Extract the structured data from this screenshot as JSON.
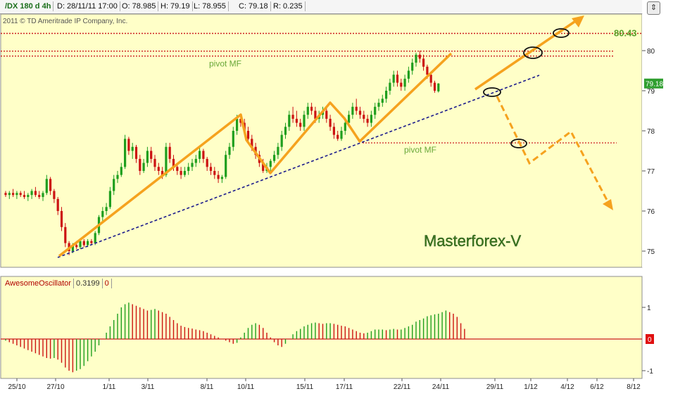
{
  "header": {
    "symbol": "/DX 180 d 4h",
    "date": "D: 28/11/11 17:00",
    "open": "O: 78.985",
    "high": "H: 79.19",
    "low": "L: 78.955",
    "close": "C: 79.18",
    "range": "R: 0.235"
  },
  "copyright": "2011 © TD Ameritrade IP Company, Inc.",
  "watermark": "Masterforex-V",
  "oscillator": {
    "name": "AwesomeOscillator",
    "value": "0.3199",
    "zero": "0"
  },
  "colors": {
    "background": "#ffffc8",
    "up": "#1e9e1e",
    "down": "#cc1212",
    "pattern": "#f5a21e",
    "trendline": "#1a1a8c",
    "level": "#cc1f1f"
  },
  "chart_data": {
    "type": "candlestick",
    "title": "/DX 180 d 4h",
    "ylim": [
      74.7,
      81.0
    ],
    "y_ticks": [
      75,
      76,
      77,
      78,
      79,
      80
    ],
    "x_ticks": [
      "25/10",
      "27/10",
      "1/11",
      "3/11",
      "8/11",
      "10/11",
      "15/11",
      "17/11",
      "22/11",
      "24/11",
      "29/11",
      "1/12",
      "4/12",
      "6/12",
      "8/12"
    ],
    "last_price": "79.18",
    "levels": [
      {
        "label": "80.43",
        "value": 80.43
      },
      {
        "label": "pivot MF",
        "value": 79.9
      },
      {
        "label": "pivot MF",
        "value": 77.7
      }
    ],
    "candles": [
      [
        76.45,
        76.5,
        76.35,
        76.4
      ],
      [
        76.4,
        76.5,
        76.3,
        76.45
      ],
      [
        76.45,
        76.55,
        76.35,
        76.4
      ],
      [
        76.4,
        76.5,
        76.3,
        76.45
      ],
      [
        76.45,
        76.5,
        76.35,
        76.4
      ],
      [
        76.4,
        76.5,
        76.3,
        76.35
      ],
      [
        76.35,
        76.45,
        76.25,
        76.4
      ],
      [
        76.4,
        76.55,
        76.3,
        76.5
      ],
      [
        76.5,
        76.6,
        76.35,
        76.4
      ],
      [
        76.4,
        76.5,
        76.3,
        76.35
      ],
      [
        76.35,
        76.5,
        76.25,
        76.45
      ],
      [
        76.45,
        76.9,
        76.4,
        76.8
      ],
      [
        76.8,
        76.85,
        76.4,
        76.5
      ],
      [
        76.5,
        76.55,
        76.2,
        76.3
      ],
      [
        76.3,
        76.35,
        75.9,
        76.0
      ],
      [
        76.0,
        76.1,
        75.5,
        75.6
      ],
      [
        75.6,
        75.7,
        75.1,
        75.2
      ],
      [
        75.2,
        75.25,
        74.9,
        75.0
      ],
      [
        75.0,
        75.2,
        74.95,
        75.15
      ],
      [
        75.15,
        75.25,
        75.05,
        75.1
      ],
      [
        75.1,
        75.3,
        75.05,
        75.25
      ],
      [
        75.25,
        75.3,
        75.1,
        75.15
      ],
      [
        75.15,
        75.3,
        75.1,
        75.25
      ],
      [
        75.25,
        75.3,
        75.15,
        75.2
      ],
      [
        75.2,
        75.5,
        75.15,
        75.45
      ],
      [
        75.45,
        75.9,
        75.4,
        75.85
      ],
      [
        75.85,
        76.1,
        75.75,
        76.0
      ],
      [
        76.0,
        76.2,
        75.9,
        76.1
      ],
      [
        76.1,
        76.6,
        76.05,
        76.5
      ],
      [
        76.5,
        76.9,
        76.4,
        76.8
      ],
      [
        76.8,
        77.0,
        76.7,
        76.9
      ],
      [
        76.9,
        77.2,
        76.85,
        77.1
      ],
      [
        77.1,
        77.9,
        77.05,
        77.8
      ],
      [
        77.8,
        77.85,
        77.4,
        77.5
      ],
      [
        77.5,
        77.7,
        77.3,
        77.6
      ],
      [
        77.6,
        77.65,
        77.2,
        77.3
      ],
      [
        77.3,
        77.4,
        76.9,
        77.0
      ],
      [
        77.0,
        77.3,
        76.95,
        77.2
      ],
      [
        77.2,
        77.6,
        77.1,
        77.5
      ],
      [
        77.5,
        77.6,
        77.2,
        77.3
      ],
      [
        77.3,
        77.4,
        77.0,
        77.1
      ],
      [
        77.1,
        77.2,
        76.9,
        77.0
      ],
      [
        77.0,
        77.1,
        76.8,
        76.9
      ],
      [
        76.9,
        77.7,
        76.85,
        77.6
      ],
      [
        77.6,
        77.7,
        77.2,
        77.3
      ],
      [
        77.3,
        77.4,
        77.0,
        77.1
      ],
      [
        77.1,
        77.2,
        76.9,
        77.0
      ],
      [
        77.0,
        77.1,
        76.8,
        76.9
      ],
      [
        76.9,
        77.1,
        76.85,
        77.0
      ],
      [
        77.0,
        77.2,
        76.9,
        77.1
      ],
      [
        77.1,
        77.3,
        77.0,
        77.2
      ],
      [
        77.2,
        77.4,
        77.1,
        77.3
      ],
      [
        77.3,
        77.6,
        77.2,
        77.5
      ],
      [
        77.5,
        77.55,
        77.2,
        77.3
      ],
      [
        77.3,
        77.35,
        77.0,
        77.1
      ],
      [
        77.1,
        77.2,
        76.9,
        77.0
      ],
      [
        77.0,
        77.1,
        76.8,
        76.9
      ],
      [
        76.9,
        77.0,
        76.7,
        76.8
      ],
      [
        76.8,
        76.9,
        76.7,
        76.85
      ],
      [
        76.85,
        77.5,
        76.8,
        77.4
      ],
      [
        77.4,
        77.7,
        77.3,
        77.6
      ],
      [
        77.6,
        78.1,
        77.5,
        78.0
      ],
      [
        78.0,
        78.4,
        77.9,
        78.3
      ],
      [
        78.3,
        78.4,
        78.1,
        78.2
      ],
      [
        78.2,
        78.3,
        77.9,
        78.0
      ],
      [
        78.0,
        78.1,
        77.7,
        77.8
      ],
      [
        77.8,
        77.9,
        77.5,
        77.6
      ],
      [
        77.6,
        77.7,
        77.3,
        77.4
      ],
      [
        77.4,
        77.5,
        77.1,
        77.2
      ],
      [
        77.2,
        77.3,
        76.95,
        77.0
      ],
      [
        77.0,
        77.2,
        76.95,
        77.1
      ],
      [
        77.1,
        77.3,
        77.0,
        77.25
      ],
      [
        77.25,
        77.5,
        77.2,
        77.4
      ],
      [
        77.4,
        77.7,
        77.3,
        77.6
      ],
      [
        77.6,
        78.0,
        77.5,
        77.9
      ],
      [
        77.9,
        78.2,
        77.8,
        78.1
      ],
      [
        78.1,
        78.5,
        78.0,
        78.4
      ],
      [
        78.4,
        78.6,
        78.2,
        78.3
      ],
      [
        78.3,
        78.5,
        78.1,
        78.2
      ],
      [
        78.2,
        78.3,
        78.0,
        78.1
      ],
      [
        78.1,
        78.5,
        78.0,
        78.4
      ],
      [
        78.4,
        78.7,
        78.3,
        78.6
      ],
      [
        78.6,
        78.7,
        78.4,
        78.5
      ],
      [
        78.5,
        78.6,
        78.2,
        78.3
      ],
      [
        78.3,
        78.5,
        78.2,
        78.4
      ],
      [
        78.4,
        78.6,
        78.3,
        78.5
      ],
      [
        78.5,
        78.6,
        78.2,
        78.3
      ],
      [
        78.3,
        78.4,
        78.0,
        78.1
      ],
      [
        78.1,
        78.2,
        77.8,
        77.9
      ],
      [
        77.9,
        78.0,
        77.75,
        77.8
      ],
      [
        77.8,
        78.1,
        77.75,
        78.0
      ],
      [
        78.0,
        78.3,
        77.9,
        78.2
      ],
      [
        78.2,
        78.5,
        78.1,
        78.4
      ],
      [
        78.4,
        78.7,
        78.3,
        78.6
      ],
      [
        78.6,
        78.8,
        78.4,
        78.5
      ],
      [
        78.5,
        78.6,
        78.3,
        78.4
      ],
      [
        78.4,
        78.5,
        78.2,
        78.3
      ],
      [
        78.3,
        78.4,
        78.1,
        78.2
      ],
      [
        78.2,
        78.5,
        78.1,
        78.4
      ],
      [
        78.4,
        78.7,
        78.3,
        78.6
      ],
      [
        78.6,
        78.8,
        78.5,
        78.7
      ],
      [
        78.7,
        78.9,
        78.6,
        78.8
      ],
      [
        78.8,
        79.1,
        78.7,
        79.0
      ],
      [
        79.0,
        79.3,
        78.9,
        79.2
      ],
      [
        79.2,
        79.5,
        79.1,
        79.4
      ],
      [
        79.4,
        79.5,
        79.1,
        79.2
      ],
      [
        79.2,
        79.3,
        79.0,
        79.1
      ],
      [
        79.1,
        79.4,
        79.0,
        79.3
      ],
      [
        79.3,
        79.6,
        79.2,
        79.5
      ],
      [
        79.5,
        79.8,
        79.4,
        79.7
      ],
      [
        79.7,
        79.95,
        79.6,
        79.9
      ],
      [
        79.9,
        80.0,
        79.7,
        79.8
      ],
      [
        79.8,
        79.9,
        79.5,
        79.6
      ],
      [
        79.6,
        79.65,
        79.3,
        79.4
      ],
      [
        79.4,
        79.45,
        79.1,
        79.2
      ],
      [
        79.2,
        79.25,
        78.95,
        79.0
      ],
      [
        78.985,
        79.19,
        78.955,
        79.18
      ]
    ],
    "oscillator": {
      "name": "AwesomeOscillator",
      "ylim": [
        -1.15,
        1.3
      ],
      "y_ticks": [
        -1,
        0,
        1
      ],
      "values": [
        -0.05,
        -0.1,
        -0.15,
        -0.2,
        -0.25,
        -0.3,
        -0.35,
        -0.4,
        -0.45,
        -0.5,
        -0.55,
        -0.6,
        -0.62,
        -0.6,
        -0.65,
        -0.75,
        -0.9,
        -1.0,
        -1.05,
        -1.0,
        -0.95,
        -0.85,
        -0.7,
        -0.55,
        -0.4,
        -0.2,
        0.0,
        0.2,
        0.4,
        0.6,
        0.8,
        1.0,
        1.1,
        1.15,
        1.1,
        1.05,
        1.0,
        0.95,
        0.9,
        0.92,
        0.95,
        0.9,
        0.85,
        0.8,
        0.7,
        0.6,
        0.5,
        0.42,
        0.38,
        0.35,
        0.33,
        0.3,
        0.28,
        0.25,
        0.2,
        0.15,
        0.1,
        0.05,
        0.0,
        -0.05,
        -0.1,
        -0.15,
        -0.12,
        0.05,
        0.2,
        0.35,
        0.45,
        0.5,
        0.45,
        0.35,
        0.2,
        0.05,
        -0.1,
        -0.2,
        -0.25,
        -0.15,
        0.0,
        0.15,
        0.25,
        0.32,
        0.4,
        0.45,
        0.5,
        0.52,
        0.5,
        0.48,
        0.5,
        0.5,
        0.48,
        0.45,
        0.42,
        0.4,
        0.35,
        0.3,
        0.25,
        0.2,
        0.18,
        0.2,
        0.25,
        0.3,
        0.3,
        0.3,
        0.28,
        0.3,
        0.32,
        0.3,
        0.3,
        0.35,
        0.4,
        0.45,
        0.55,
        0.6,
        0.65,
        0.72,
        0.75,
        0.78,
        0.8,
        0.85,
        0.9,
        0.85,
        0.8,
        0.7,
        0.5,
        0.32
      ]
    }
  }
}
